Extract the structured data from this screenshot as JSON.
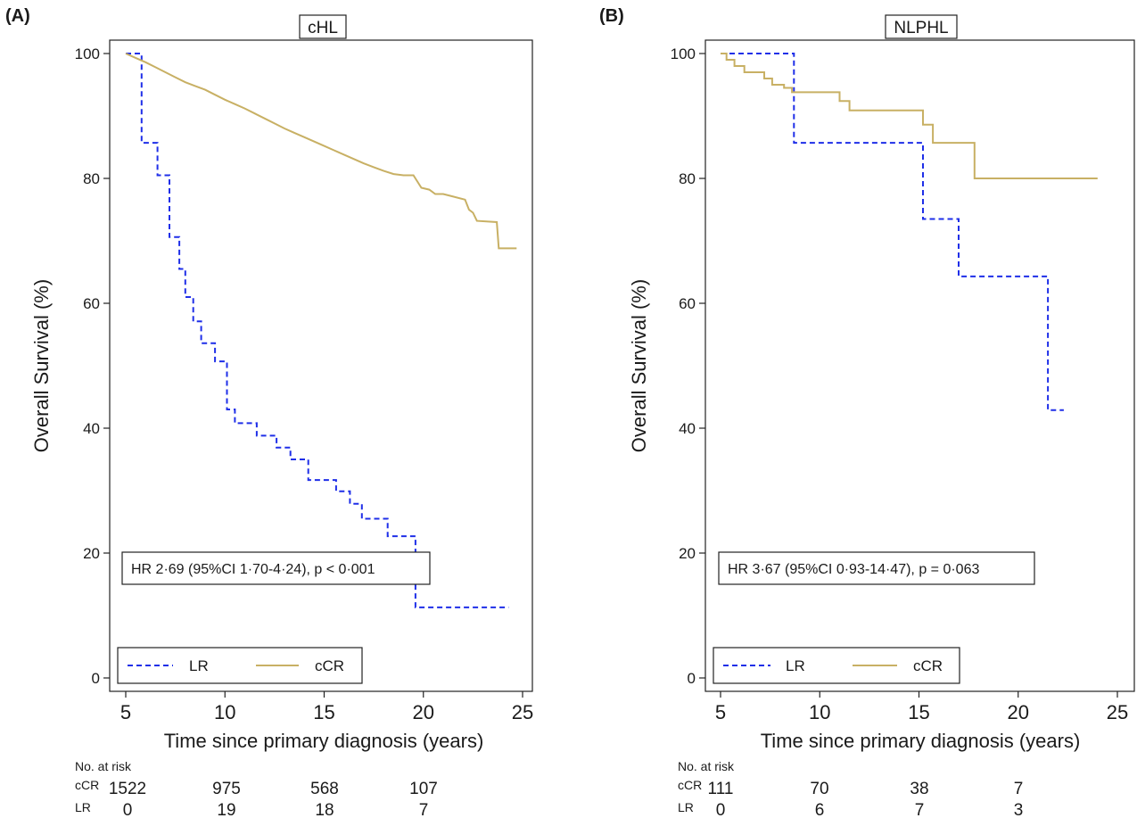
{
  "chart_data": [
    {
      "type": "line",
      "panel_label": "(A)",
      "title": "cHL",
      "xlabel": "Time since primary diagnosis (years)",
      "ylabel": "Overall Survival (%)",
      "xlim": [
        5,
        25
      ],
      "ylim": [
        0,
        100
      ],
      "x_ticks": [
        5,
        10,
        15,
        20,
        25
      ],
      "y_ticks": [
        0,
        20,
        40,
        60,
        80,
        100
      ],
      "grid": false,
      "legend_position": "bottom",
      "annotation": "HR 2·69 (95%CI 1·70-4·24), p < 0·001",
      "series": [
        {
          "name": "LR",
          "color": "#1f2fe8",
          "dash": "dashed",
          "x": [
            5.0,
            5.8,
            5.8,
            6.6,
            6.6,
            7.2,
            7.2,
            7.7,
            7.7,
            8.0,
            8.0,
            8.4,
            8.4,
            8.8,
            8.8,
            9.5,
            9.5,
            10.1,
            10.1,
            10.5,
            10.5,
            11.6,
            11.6,
            12.6,
            12.6,
            13.3,
            13.3,
            14.2,
            14.2,
            15.6,
            15.6,
            16.3,
            16.3,
            16.9,
            16.9,
            18.2,
            18.2,
            19.6,
            19.6,
            23.8,
            23.8,
            24.3
          ],
          "y": [
            100,
            100,
            85.7,
            85.7,
            80.5,
            80.5,
            70.6,
            70.6,
            65.5,
            65.5,
            61.0,
            61.0,
            57.1,
            57.1,
            53.6,
            53.6,
            50.7,
            50.7,
            43.0,
            43.0,
            40.8,
            40.8,
            38.8,
            38.8,
            36.9,
            36.9,
            35.0,
            35.0,
            31.7,
            31.7,
            29.9,
            29.9,
            27.9,
            27.9,
            25.5,
            25.5,
            22.7,
            22.7,
            11.3,
            11.3,
            11.3,
            11.3
          ]
        },
        {
          "name": "cCR",
          "color": "#c8b064",
          "dash": "solid",
          "x": [
            5.0,
            5.5,
            6.0,
            6.5,
            7.0,
            7.5,
            8.0,
            8.5,
            9.0,
            9.5,
            10.0,
            10.5,
            11.0,
            11.5,
            12.0,
            12.5,
            13.0,
            13.5,
            14.0,
            14.5,
            15.0,
            15.5,
            16.0,
            16.5,
            17.0,
            17.5,
            18.0,
            18.5,
            19.0,
            19.5,
            19.9,
            20.3,
            20.6,
            21.0,
            22.1,
            22.3,
            22.5,
            22.7,
            23.7,
            23.8,
            24.7
          ],
          "y": [
            100,
            99.3,
            98.6,
            97.8,
            97.0,
            96.2,
            95.4,
            94.8,
            94.2,
            93.4,
            92.6,
            91.9,
            91.2,
            90.4,
            89.6,
            88.8,
            88.0,
            87.3,
            86.6,
            85.9,
            85.2,
            84.5,
            83.8,
            83.1,
            82.4,
            81.8,
            81.2,
            80.7,
            80.5,
            80.5,
            78.5,
            78.2,
            77.5,
            77.5,
            76.6,
            75.0,
            74.5,
            73.2,
            73.0,
            68.8,
            68.8
          ]
        }
      ],
      "at_risk": {
        "header": "No. at risk",
        "times": [
          5,
          10,
          15,
          20
        ],
        "rows": [
          {
            "label": "cCR",
            "values": [
              "1522",
              "975",
              "568",
              "107"
            ]
          },
          {
            "label": "LR",
            "values": [
              "0",
              "19",
              "18",
              "7"
            ]
          }
        ]
      }
    },
    {
      "type": "line",
      "panel_label": "(B)",
      "title": "NLPHL",
      "xlabel": "Time since primary diagnosis (years)",
      "ylabel": "Overall Survival (%)",
      "xlim": [
        5,
        25
      ],
      "ylim": [
        0,
        100
      ],
      "x_ticks": [
        5,
        10,
        15,
        20,
        25
      ],
      "y_ticks": [
        0,
        20,
        40,
        60,
        80,
        100
      ],
      "grid": false,
      "legend_position": "bottom",
      "annotation": "HR 3·67 (95%CI 0·93-14·47), p = 0·063",
      "series": [
        {
          "name": "LR",
          "color": "#1f2fe8",
          "dash": "dashed",
          "x": [
            5.0,
            8.7,
            8.7,
            15.2,
            15.2,
            17.0,
            17.0,
            21.5,
            21.5,
            22.3
          ],
          "y": [
            100,
            100,
            85.7,
            85.7,
            73.5,
            73.5,
            64.3,
            64.3,
            42.9,
            42.9
          ]
        },
        {
          "name": "cCR",
          "color": "#c8b064",
          "dash": "solid",
          "x": [
            5.0,
            5.3,
            5.3,
            5.7,
            5.7,
            6.2,
            6.2,
            7.2,
            7.2,
            7.6,
            7.6,
            8.2,
            8.2,
            8.6,
            8.6,
            11.0,
            11.0,
            11.5,
            11.5,
            15.2,
            15.2,
            15.7,
            15.7,
            17.8,
            17.8,
            24.0
          ],
          "y": [
            100,
            100,
            99.0,
            99.0,
            98.0,
            98.0,
            97.0,
            97.0,
            96.0,
            96.0,
            95.0,
            95.0,
            94.5,
            94.5,
            93.8,
            93.8,
            92.4,
            92.4,
            90.9,
            90.9,
            88.6,
            88.6,
            85.7,
            85.7,
            80.0,
            80.0
          ]
        }
      ],
      "at_risk": {
        "header": "No. at risk",
        "times": [
          5,
          10,
          15,
          20
        ],
        "rows": [
          {
            "label": "cCR",
            "values": [
              "111",
              "70",
              "38",
              "7"
            ]
          },
          {
            "label": "LR",
            "values": [
              "0",
              "6",
              "7",
              "3"
            ]
          }
        ]
      }
    }
  ]
}
